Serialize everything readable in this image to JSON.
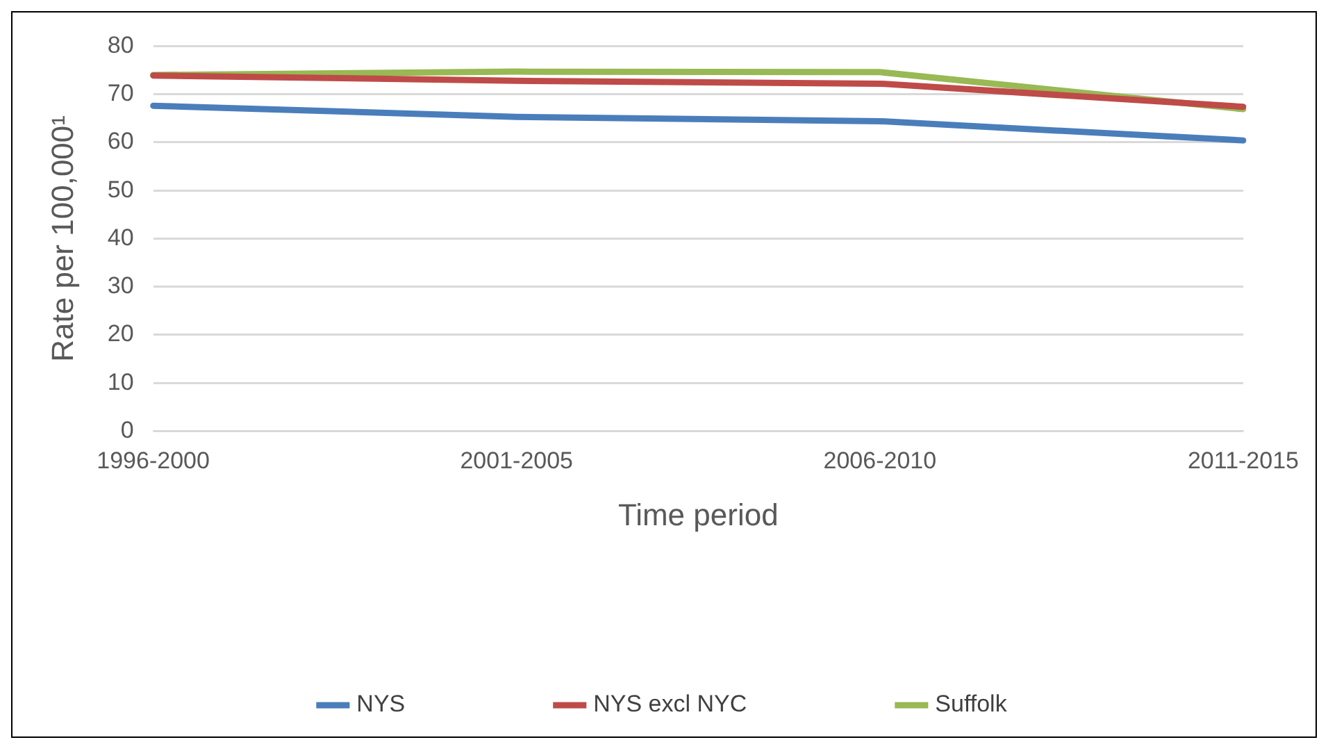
{
  "chart_data": {
    "type": "line",
    "xlabel": "Time period",
    "ylabel": "Rate per 100,000¹",
    "categories": [
      "1996-2000",
      "2001-2005",
      "2006-2010",
      "2011-2015"
    ],
    "series": [
      {
        "name": "NYS",
        "color": "#4a7ebb",
        "values": [
          67.6,
          65.3,
          64.4,
          60.4
        ]
      },
      {
        "name": "NYS excl NYC",
        "color": "#be4b48",
        "values": [
          73.9,
          72.8,
          72.2,
          67.4
        ]
      },
      {
        "name": "Suffolk",
        "color": "#98b954",
        "values": [
          74.0,
          74.7,
          74.6,
          66.9
        ]
      }
    ],
    "ylim": [
      0,
      80
    ],
    "yticks": [
      0,
      10,
      20,
      30,
      40,
      50,
      60,
      70,
      80
    ],
    "grid": "y",
    "legend": "bottom",
    "marker": "none",
    "line_style": "solid"
  }
}
